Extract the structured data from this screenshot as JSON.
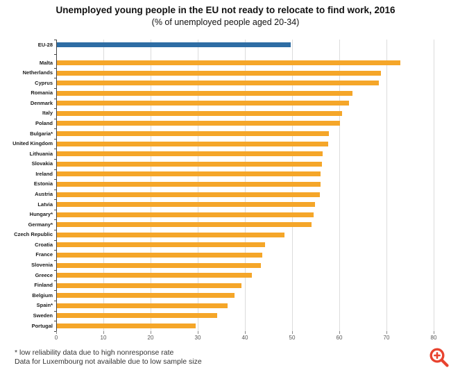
{
  "header": {
    "title": "Unemployed young people in the EU not ready to relocate to find work, 2016",
    "subtitle": "(% of unemployed people aged 20-34)"
  },
  "chart_data": {
    "type": "bar",
    "orientation": "horizontal",
    "title": "Unemployed young people in the EU not ready to relocate to find work, 2016",
    "subtitle": "(% of unemployed people aged 20-34)",
    "xlabel": "",
    "ylabel": "",
    "xlim": [
      0,
      85
    ],
    "x_ticks": [
      0,
      10,
      20,
      30,
      40,
      50,
      60,
      70,
      80
    ],
    "grid": true,
    "categories": [
      "EU-28",
      "Malta",
      "Netherlands",
      "Cyprus",
      "Romania",
      "Denmark",
      "Italy",
      "Poland",
      "Bulgaria*",
      "United Kingdom",
      "Lithuania",
      "Slovakia",
      "Ireland",
      "Estonia",
      "Austria",
      "Latvia",
      "Hungary*",
      "Germany*",
      "Czech Republic",
      "Croatia",
      "France",
      "Slovenia",
      "Greece",
      "Finland",
      "Belgium",
      "Spain*",
      "Sweden",
      "Portugal"
    ],
    "values": [
      49.7,
      72.9,
      68.8,
      68.4,
      62.8,
      62.1,
      60.6,
      60.1,
      57.8,
      57.6,
      56.5,
      56.3,
      56.1,
      56.0,
      55.9,
      54.9,
      54.6,
      54.1,
      48.4,
      44.3,
      43.7,
      43.4,
      41.5,
      39.3,
      37.8,
      36.3,
      34.1,
      29.6
    ],
    "highlight_category": "EU-28",
    "bar_color": "#F5A629",
    "highlight_color": "#2E6DA4",
    "gridline_color": "#dcdcdc",
    "axis_color": "#444444"
  },
  "footnotes": {
    "line1": "* low reliability data due to high nonresponse rate",
    "line2": "Data for Luxembourg not available due to low sample size"
  },
  "zoom_icon": {
    "name": "zoom-in-icon",
    "color": "#E8432F"
  }
}
